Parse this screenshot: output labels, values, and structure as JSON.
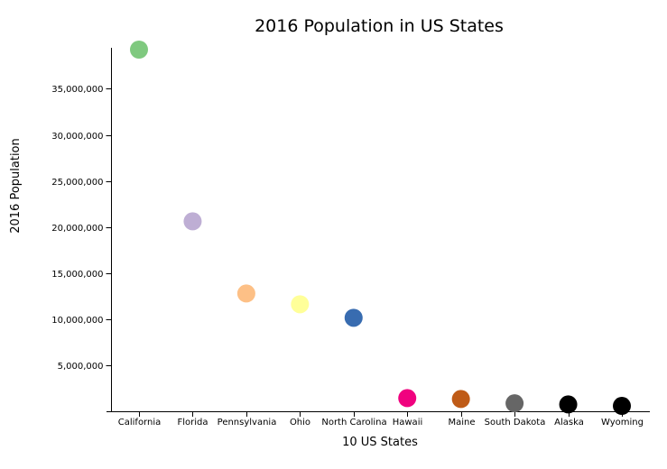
{
  "chart_data": {
    "type": "scatter",
    "title": "2016 Population in US States",
    "xlabel": "10 US States",
    "ylabel": "2016 Population",
    "categories": [
      "California",
      "Florida",
      "Pennsylvania",
      "Ohio",
      "North Carolina",
      "Hawaii",
      "Maine",
      "South Dakota",
      "Alaska",
      "Wyoming"
    ],
    "values": [
      39250017,
      20612439,
      12784227,
      11614373,
      10146788,
      1428557,
      1331479,
      865454,
      741894,
      585501
    ],
    "colors": [
      "#7fc97f",
      "#beaed4",
      "#fdc086",
      "#ffff99",
      "#386cb0",
      "#f0027f",
      "#bf5b17",
      "#666666",
      "#000000",
      "#000000"
    ],
    "ylim": [
      0,
      39250017
    ],
    "yticks": [
      5000000,
      10000000,
      15000000,
      20000000,
      25000000,
      30000000,
      35000000
    ],
    "ytick_labels": [
      "5,000,000",
      "10,000,000",
      "15,000,000",
      "20,000,000",
      "25,000,000",
      "30,000,000",
      "35,000,000"
    ],
    "grid": false
  }
}
